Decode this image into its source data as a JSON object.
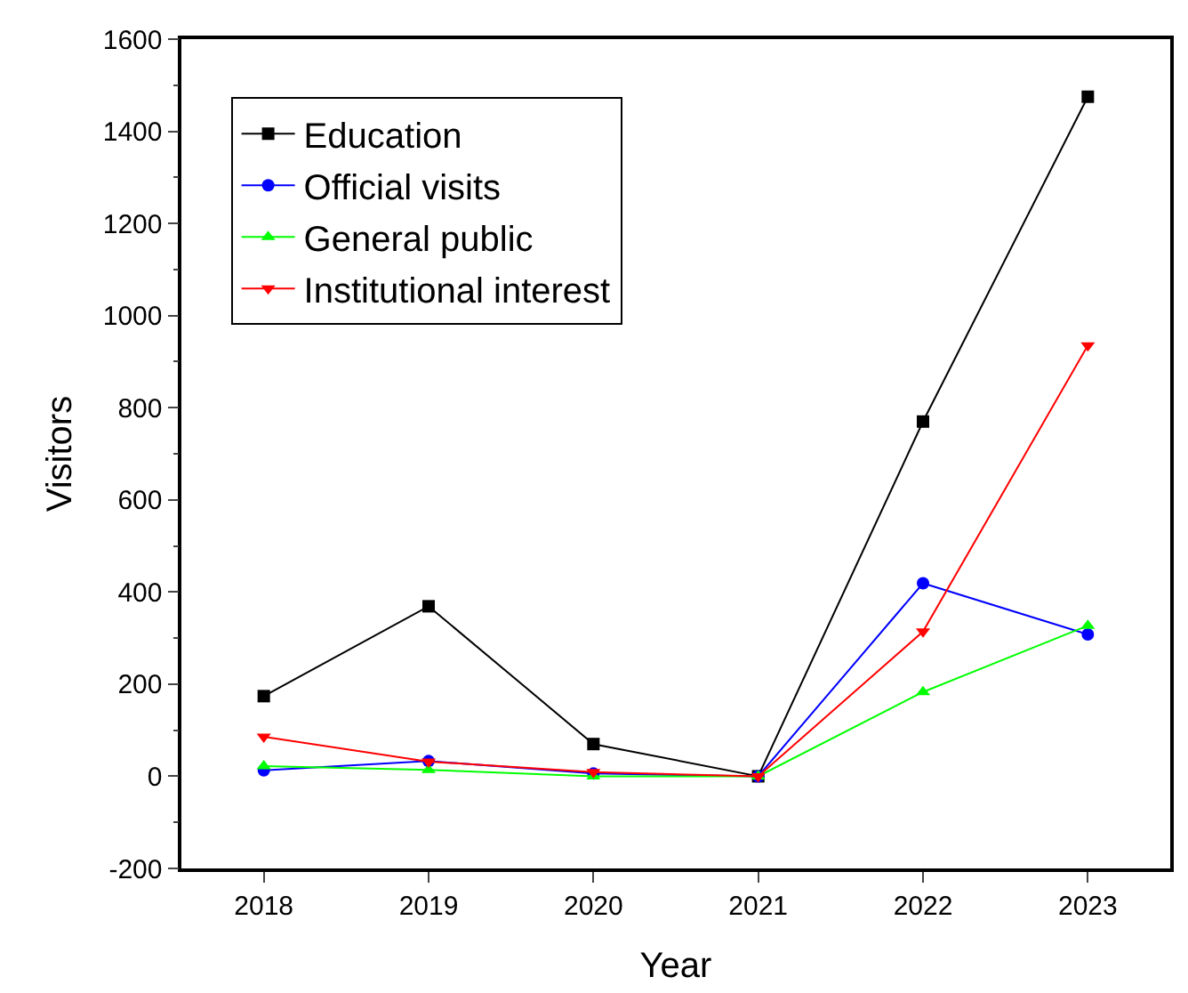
{
  "chart_data": {
    "type": "line",
    "xlabel": "Year",
    "ylabel": "Visitors",
    "categories": [
      "2018",
      "2019",
      "2020",
      "2021",
      "2022",
      "2023"
    ],
    "ylim": [
      -200,
      1600
    ],
    "yticks": [
      -200,
      0,
      200,
      400,
      600,
      800,
      1000,
      1200,
      1400,
      1600
    ],
    "grid": false,
    "legend": "top left",
    "line_style": "solid",
    "series": [
      {
        "name": "Education",
        "color": "#000000",
        "marker": "square",
        "values": [
          174,
          369,
          70,
          0,
          770,
          1475
        ]
      },
      {
        "name": "Official visits",
        "color": "#0000ff",
        "marker": "circle",
        "values": [
          13,
          33,
          6,
          0,
          419,
          308
        ]
      },
      {
        "name": "General public",
        "color": "#00ff00",
        "marker": "triangle",
        "values": [
          22,
          14,
          0,
          0,
          183,
          327
        ]
      },
      {
        "name": "Institutional interest",
        "color": "#ff0000",
        "marker": "triangle-down",
        "values": [
          86,
          32,
          9,
          0,
          314,
          935
        ]
      }
    ]
  }
}
